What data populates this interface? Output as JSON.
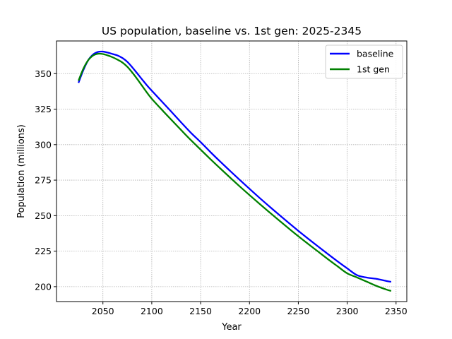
{
  "chart_data": {
    "type": "line",
    "title": "US population, baseline vs. 1st gen: 2025-2345",
    "xlabel": "Year",
    "ylabel": "Population (millions)",
    "xlim": [
      2002.5,
      2361
    ],
    "ylim": [
      189.5,
      373
    ],
    "xticks": [
      2050,
      2100,
      2150,
      2200,
      2250,
      2300,
      2350
    ],
    "yticks": [
      200,
      225,
      250,
      275,
      300,
      325,
      350
    ],
    "grid": true,
    "legend_position": "upper-right",
    "x": [
      2025,
      2030,
      2035,
      2040,
      2045,
      2050,
      2055,
      2060,
      2065,
      2070,
      2075,
      2080,
      2085,
      2090,
      2095,
      2100,
      2110,
      2120,
      2130,
      2140,
      2150,
      2160,
      2170,
      2180,
      2190,
      2200,
      2210,
      2220,
      2230,
      2240,
      2250,
      2260,
      2270,
      2280,
      2290,
      2300,
      2310,
      2320,
      2330,
      2340,
      2345
    ],
    "series": [
      {
        "name": "baseline",
        "color": "#0000ff",
        "values": [
          343.5,
          352.5,
          359.5,
          363.5,
          365.3,
          365.5,
          364.8,
          363.8,
          362.8,
          361,
          358.3,
          354.5,
          350.3,
          346,
          341.8,
          338,
          330.6,
          323.2,
          315.7,
          308.4,
          301.8,
          294.8,
          288.1,
          281.6,
          275.2,
          268.9,
          262.7,
          256.7,
          250.8,
          245,
          239.3,
          233.8,
          228.4,
          223.1,
          217.9,
          212.9,
          208.1,
          206.4,
          205.5,
          204,
          203.4
        ]
      },
      {
        "name": "1st gen",
        "color": "#008000",
        "values": [
          345,
          353.5,
          359.5,
          362.8,
          364,
          363.8,
          362.8,
          361.5,
          359.8,
          357.8,
          354.8,
          350.8,
          346.3,
          341.5,
          336.7,
          332.3,
          324.8,
          317.5,
          310.3,
          303.2,
          296.5,
          289.8,
          283.3,
          276.9,
          270.6,
          264.5,
          258.5,
          252.6,
          246.8,
          241.1,
          235.5,
          230.1,
          224.8,
          219.5,
          214.4,
          209.4,
          206.5,
          203.5,
          200.5,
          198,
          197
        ]
      }
    ]
  }
}
